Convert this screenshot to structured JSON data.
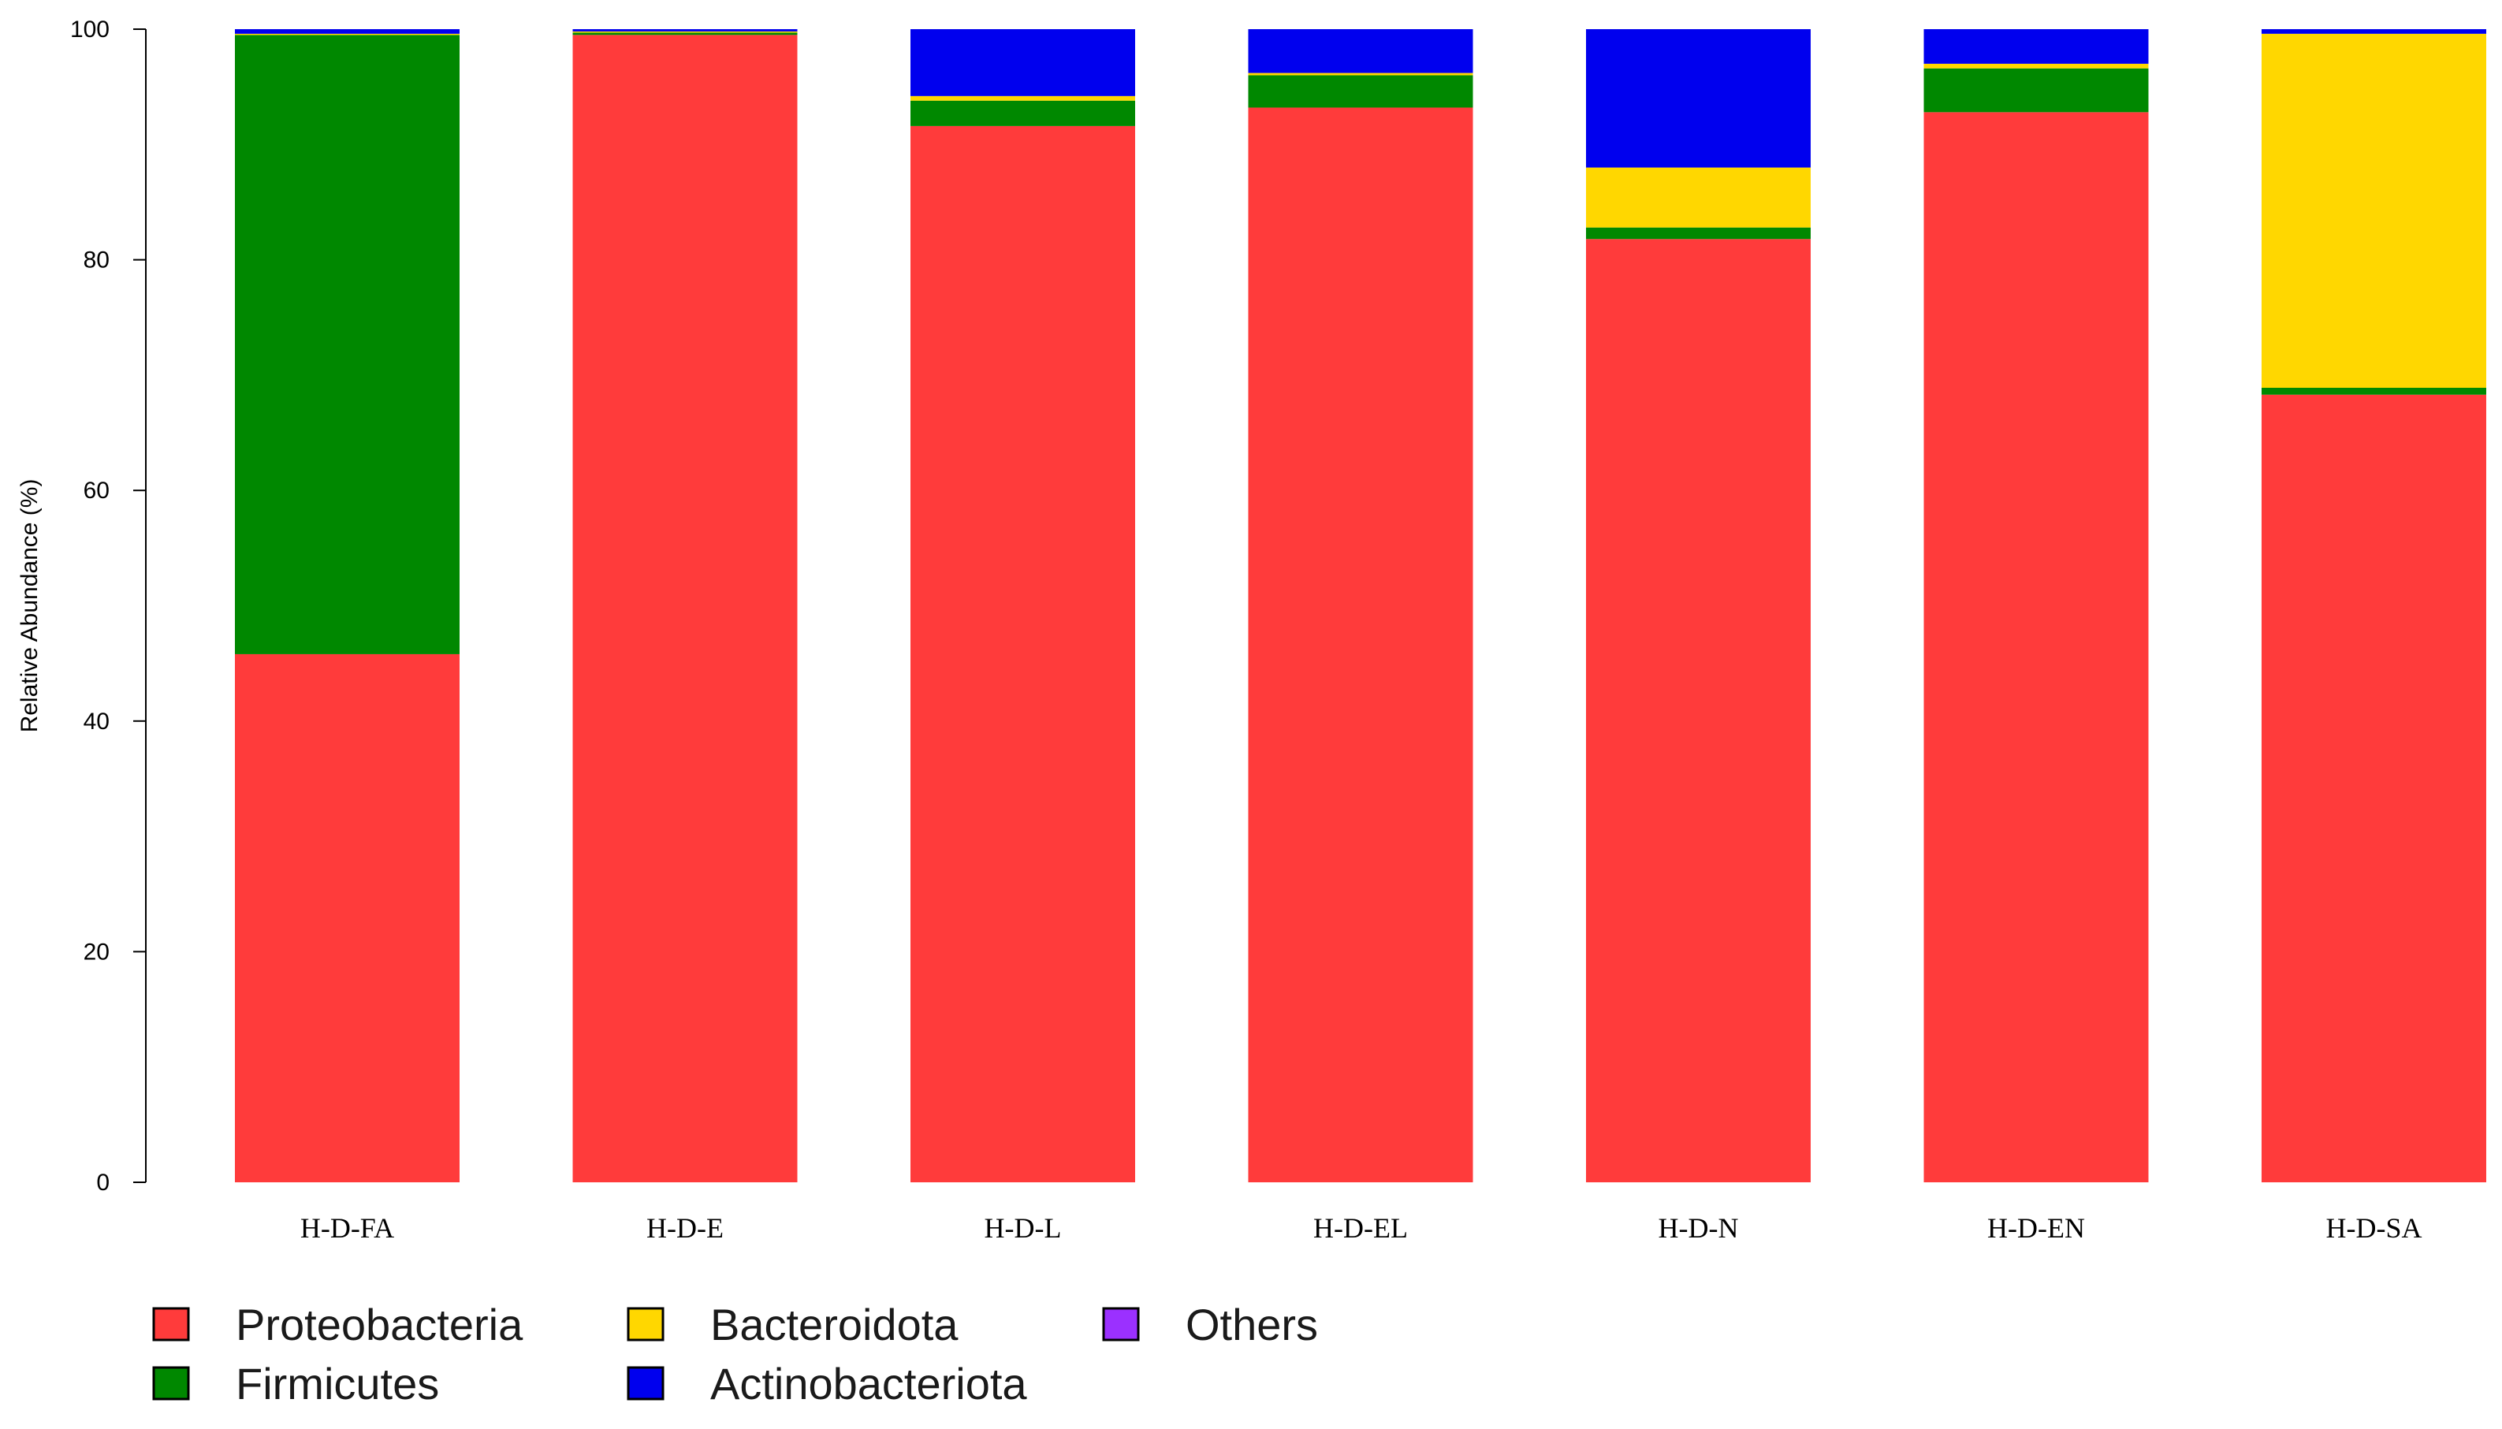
{
  "chart_data": {
    "type": "bar",
    "stacked": true,
    "title": "",
    "xlabel": "",
    "ylabel": "Relative Abundance (%)",
    "ylim": [
      0,
      100
    ],
    "yticks": [
      0,
      20,
      40,
      60,
      80,
      100
    ],
    "grid": false,
    "categories": [
      "H-D-FA",
      "H-D-E",
      "H-D-L",
      "H-D-EL",
      "H-D-N",
      "H-D-EN",
      "H-D-SA"
    ],
    "series": [
      {
        "name": "Proteobacteria",
        "color": "#ff3b3b",
        "values": [
          45.8,
          99.5,
          91.6,
          93.2,
          81.8,
          92.8,
          68.3
        ]
      },
      {
        "name": "Firmicutes",
        "color": "#008800",
        "values": [
          53.7,
          0.2,
          2.2,
          2.8,
          1.0,
          3.8,
          0.6
        ]
      },
      {
        "name": "Bacteroidota",
        "color": "#ffd700",
        "values": [
          0.1,
          0.1,
          0.4,
          0.2,
          5.2,
          0.4,
          30.7
        ]
      },
      {
        "name": "Actinobacteriota",
        "color": "#0000ee",
        "values": [
          0.4,
          0.2,
          5.8,
          3.8,
          12.0,
          3.0,
          0.4
        ]
      },
      {
        "name": "Others",
        "color": "#9b30ff",
        "values": [
          0.0,
          0.0,
          0.0,
          0.0,
          0.0,
          0.0,
          0.0
        ]
      }
    ],
    "legend": {
      "placement": "bottom-left",
      "entries": [
        "Proteobacteria",
        "Firmicutes",
        "Bacteroidota",
        "Actinobacteriota",
        "Others"
      ]
    }
  }
}
